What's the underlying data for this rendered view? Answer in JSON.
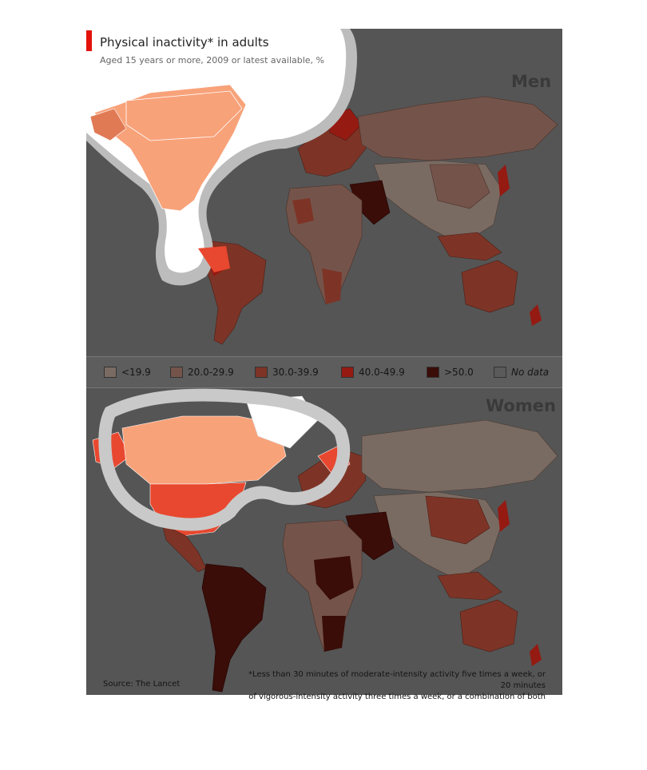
{
  "title": "Physical inactivity* in adults",
  "subtitle": "Aged 15 years or more, 2009 or latest available, %",
  "maps": [
    {
      "label": "Men"
    },
    {
      "label": "Women"
    }
  ],
  "legend": [
    {
      "label": "<19.9",
      "color": "#7a6b62"
    },
    {
      "label": "20.0-29.9",
      "color": "#74544a"
    },
    {
      "label": "30.0-39.9",
      "color": "#7d3426"
    },
    {
      "label": "40.0-49.9",
      "color": "#951a12"
    },
    {
      "label": ">50.0",
      "color": "#3a0d08"
    },
    {
      "label": "No data",
      "color": "#5a5a5a"
    }
  ],
  "highlight_colors": {
    "light": "#f8a27a",
    "strong": "#e8482f"
  },
  "source": "Source: The Lancet",
  "footnote": {
    "line1": "*Less than 30 minutes of moderate-intensity activity five times a week, or 20 minutes",
    "line2": "of vigorous-intensity activity three times a week, or a combination of both"
  }
}
